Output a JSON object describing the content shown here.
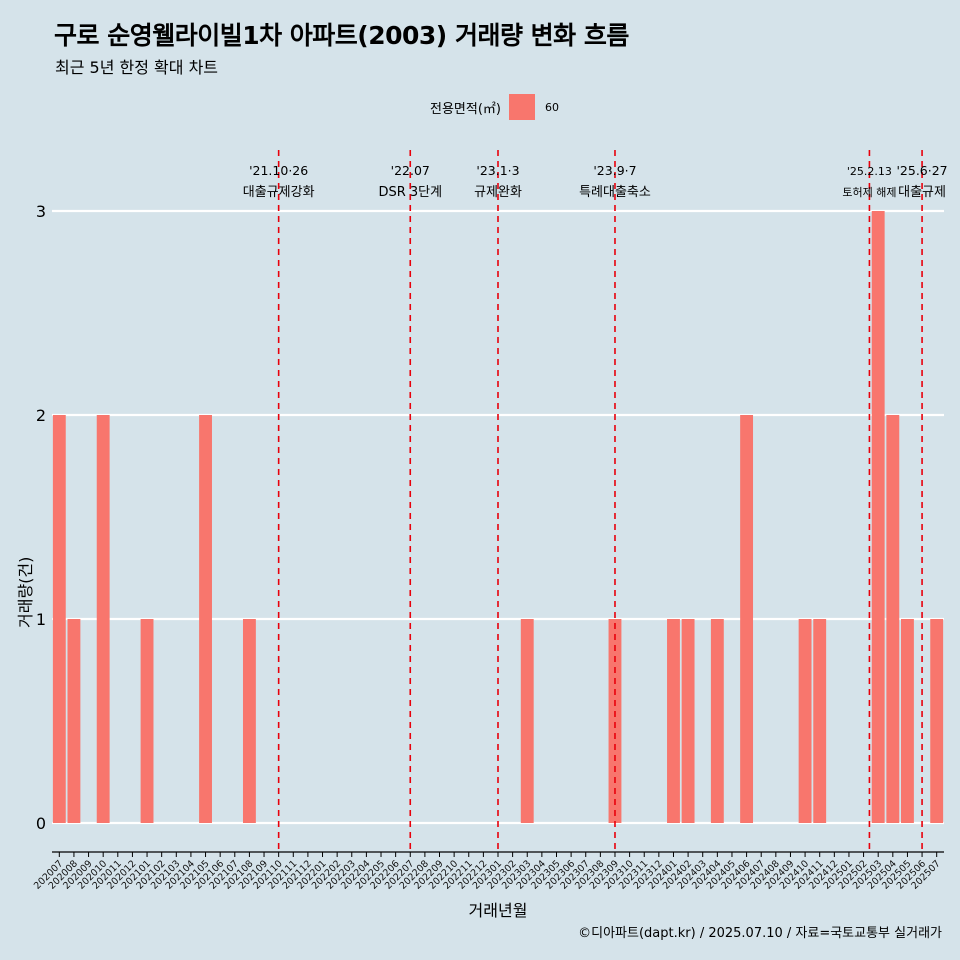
{
  "title": "구로 순영웰라이빌1차 아파트(2003) 거래량 변화 흐름",
  "subtitle": "최근 5년 한정 확대 차트",
  "legend": {
    "title": "전용면적(㎡)",
    "items": [
      "60"
    ]
  },
  "caption": "©디아파트(dapt.kr) / 2025.07.10 / 자료=국토교통부 실거래가",
  "colors": {
    "background": "#d5e3ea",
    "bar": "#f8766d",
    "grid": "#ffffff",
    "event_line": "#e8000b"
  },
  "chart_data": {
    "type": "bar",
    "xlabel": "거래년월",
    "ylabel": "거래량(건)",
    "ylim": [
      0,
      3
    ],
    "y_ticks": [
      0,
      1,
      2,
      3
    ],
    "grid": "horizontal",
    "legend_position": "top",
    "categories": [
      "202007",
      "202008",
      "202009",
      "202010",
      "202011",
      "202012",
      "202101",
      "202102",
      "202103",
      "202104",
      "202105",
      "202106",
      "202107",
      "202108",
      "202109",
      "202110",
      "202111",
      "202112",
      "202201",
      "202202",
      "202203",
      "202204",
      "202205",
      "202206",
      "202207",
      "202208",
      "202209",
      "202210",
      "202211",
      "202212",
      "202301",
      "202302",
      "202303",
      "202304",
      "202305",
      "202306",
      "202307",
      "202308",
      "202309",
      "202310",
      "202311",
      "202312",
      "202401",
      "202402",
      "202403",
      "202404",
      "202405",
      "202406",
      "202407",
      "202408",
      "202409",
      "202410",
      "202411",
      "202412",
      "202501",
      "202502",
      "202503",
      "202504",
      "202505",
      "202506",
      "202507"
    ],
    "series": [
      {
        "name": "60",
        "values": [
          2,
          1,
          0,
          2,
          0,
          0,
          1,
          0,
          0,
          0,
          2,
          0,
          0,
          1,
          0,
          0,
          0,
          0,
          0,
          0,
          0,
          0,
          0,
          0,
          0,
          0,
          0,
          0,
          0,
          0,
          0,
          0,
          1,
          0,
          0,
          0,
          0,
          0,
          1,
          0,
          0,
          0,
          1,
          1,
          0,
          1,
          0,
          2,
          0,
          0,
          0,
          1,
          1,
          0,
          0,
          0,
          3,
          2,
          1,
          0,
          1
        ]
      }
    ],
    "events": [
      {
        "at": "202110",
        "line1": "'21.10·26",
        "line2": "대출규제강화",
        "x": 15.0,
        "small": false
      },
      {
        "at": "202207",
        "line1": "'22.07",
        "line2": "DSR 3단계",
        "x": 24.0,
        "small": false
      },
      {
        "at": "202301",
        "line1": "'23.1·3",
        "line2": "규제완화",
        "x": 30.0,
        "small": false
      },
      {
        "at": "202309",
        "line1": "'23.9·7",
        "line2": "특례대출축소",
        "x": 38.0,
        "small": false
      },
      {
        "at": "202502",
        "line1": "'25.2.13",
        "line2": "토허제 해제",
        "x": 55.4,
        "small": true
      },
      {
        "at": "202506",
        "line1": "'25.6·27",
        "line2": "대출규제",
        "x": 59.0,
        "small": false
      }
    ]
  }
}
